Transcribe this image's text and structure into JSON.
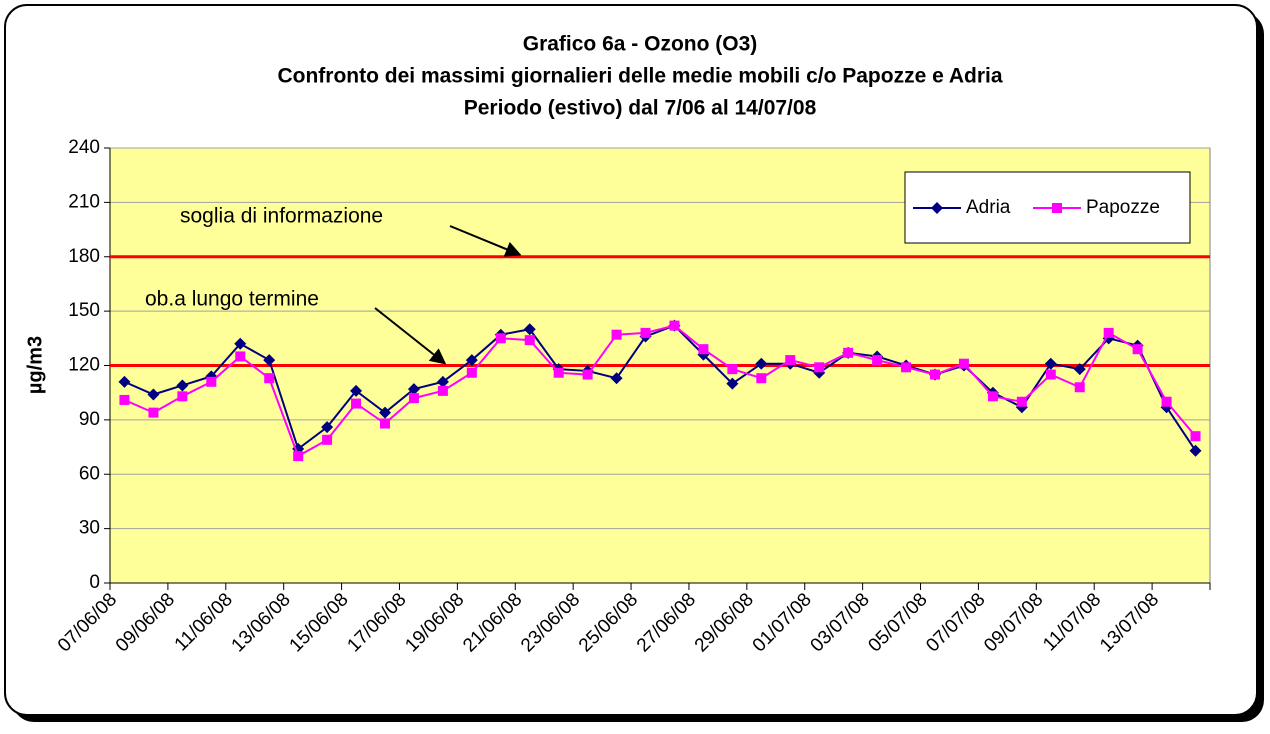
{
  "chart_data": {
    "type": "line",
    "title": "Grafico 6a - Ozono (O3)",
    "subtitle": [
      "Confronto dei massimi giornalieri delle medie mobili c/o Papozze e Adria",
      "Periodo (estivo) dal 7/06 al 14/07/08"
    ],
    "y_label": "µg/m3",
    "categories": [
      "07/06/08",
      null,
      "09/06/08",
      null,
      "11/06/08",
      null,
      "13/06/08",
      null,
      "15/06/08",
      null,
      "17/06/08",
      null,
      "19/06/08",
      null,
      "21/06/08",
      null,
      "23/06/08",
      null,
      "25/06/08",
      null,
      "27/06/08",
      null,
      "29/06/08",
      null,
      "01/07/08",
      null,
      "03/07/08",
      null,
      "05/07/08",
      null,
      "07/07/08",
      null,
      "09/07/08",
      null,
      "11/07/08",
      null,
      "13/07/08",
      null
    ],
    "series": [
      {
        "name": "Adria",
        "color": "#000080",
        "marker": "diamond",
        "values": [
          111,
          104,
          109,
          114,
          132,
          123,
          74,
          86,
          106,
          94,
          107,
          111,
          123,
          137,
          140,
          118,
          117,
          113,
          136,
          142,
          126,
          110,
          121,
          121,
          116,
          127,
          125,
          120,
          115,
          120,
          105,
          97,
          121,
          118,
          135,
          131,
          97,
          73
        ]
      },
      {
        "name": "Papozze",
        "color": "#FF00FF",
        "marker": "square",
        "values": [
          101,
          94,
          103,
          111,
          125,
          113,
          70,
          79,
          99,
          88,
          102,
          106,
          116,
          135,
          134,
          116,
          115,
          137,
          138,
          142,
          129,
          118,
          113,
          123,
          119,
          127,
          123,
          119,
          115,
          121,
          103,
          100,
          115,
          108,
          138,
          129,
          100,
          81
        ]
      }
    ],
    "reference_lines": [
      {
        "label": "soglia di informazione",
        "value": 180,
        "color": "#FF0000"
      },
      {
        "label": "ob.a lungo termine",
        "value": 120,
        "color": "#FF0000"
      }
    ],
    "ylim": [
      0,
      240
    ],
    "yticks": [
      0,
      30,
      60,
      90,
      120,
      150,
      180,
      210,
      240
    ],
    "grid": true,
    "legend": "top-right",
    "plot_background": "#FFFF99"
  }
}
